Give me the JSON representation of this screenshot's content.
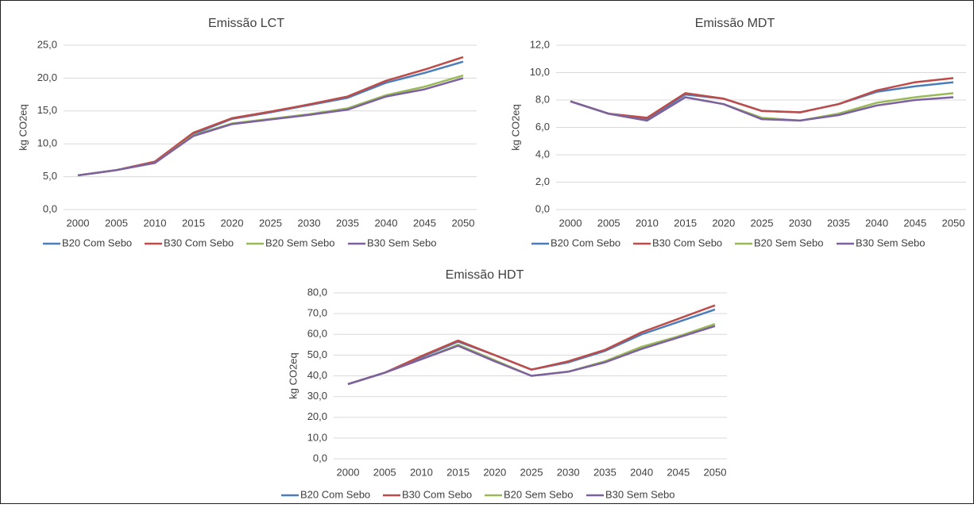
{
  "chart_data": [
    {
      "type": "line",
      "title": "Emissão LCT",
      "y_label": "kg CO2eq",
      "categories": [
        "2000",
        "2005",
        "2010",
        "2015",
        "2020",
        "2025",
        "2030",
        "2035",
        "2040",
        "2045",
        "2050"
      ],
      "ylim": [
        0,
        25
      ],
      "yticks": [
        {
          "value": 0,
          "label": "0,0"
        },
        {
          "value": 5,
          "label": "5,0"
        },
        {
          "value": 10,
          "label": "10,0"
        },
        {
          "value": 15,
          "label": "15,0"
        },
        {
          "value": 20,
          "label": "20,0"
        },
        {
          "value": 25,
          "label": "25,0"
        }
      ],
      "grid": true,
      "legend": "bottom",
      "series": [
        {
          "name": "B20 Com Sebo",
          "color": "#4a7ebb",
          "values": [
            5.2,
            6.0,
            7.2,
            11.5,
            13.8,
            14.8,
            15.9,
            17.0,
            19.3,
            20.8,
            22.5
          ]
        },
        {
          "name": "B30 Com Sebo",
          "color": "#be4b48",
          "values": [
            5.2,
            6.0,
            7.3,
            11.7,
            13.9,
            14.9,
            16.0,
            17.2,
            19.6,
            21.3,
            23.2
          ]
        },
        {
          "name": "B20 Sem Sebo",
          "color": "#98b954",
          "values": [
            5.2,
            6.0,
            7.1,
            11.3,
            13.1,
            13.8,
            14.5,
            15.4,
            17.4,
            18.7,
            20.4
          ]
        },
        {
          "name": "B30 Sem Sebo",
          "color": "#7d60a0",
          "values": [
            5.2,
            6.0,
            7.1,
            11.2,
            13.0,
            13.7,
            14.4,
            15.2,
            17.2,
            18.3,
            20.0
          ]
        }
      ]
    },
    {
      "type": "line",
      "title": "Emissão MDT",
      "y_label": "kg CO2eq",
      "categories": [
        "2000",
        "2005",
        "2010",
        "2015",
        "2020",
        "2025",
        "2030",
        "2035",
        "2040",
        "2045",
        "2050"
      ],
      "ylim": [
        0,
        12
      ],
      "yticks": [
        {
          "value": 0,
          "label": "0,0"
        },
        {
          "value": 2,
          "label": "2,0"
        },
        {
          "value": 4,
          "label": "4,0"
        },
        {
          "value": 6,
          "label": "6,0"
        },
        {
          "value": 8,
          "label": "8,0"
        },
        {
          "value": 10,
          "label": "10,0"
        },
        {
          "value": 12,
          "label": "12,0"
        }
      ],
      "grid": true,
      "legend": "bottom",
      "series": [
        {
          "name": "B20 Com Sebo",
          "color": "#4a7ebb",
          "values": [
            7.9,
            7.0,
            6.6,
            8.4,
            8.1,
            7.2,
            7.1,
            7.7,
            8.6,
            9.0,
            9.3
          ]
        },
        {
          "name": "B30 Com Sebo",
          "color": "#be4b48",
          "values": [
            7.9,
            7.0,
            6.7,
            8.5,
            8.1,
            7.2,
            7.1,
            7.7,
            8.7,
            9.3,
            9.6
          ]
        },
        {
          "name": "B20 Sem Sebo",
          "color": "#98b954",
          "values": [
            7.9,
            7.0,
            6.5,
            8.2,
            7.7,
            6.7,
            6.5,
            7.0,
            7.8,
            8.2,
            8.5
          ]
        },
        {
          "name": "B30 Sem Sebo",
          "color": "#7d60a0",
          "values": [
            7.9,
            7.0,
            6.5,
            8.2,
            7.7,
            6.6,
            6.5,
            6.9,
            7.6,
            8.0,
            8.2
          ]
        }
      ]
    },
    {
      "type": "line",
      "title": "Emissão HDT",
      "y_label": "kg CO2eq",
      "categories": [
        "2000",
        "2005",
        "2010",
        "2015",
        "2020",
        "2025",
        "2030",
        "2035",
        "2040",
        "2045",
        "2050"
      ],
      "ylim": [
        0,
        80
      ],
      "yticks": [
        {
          "value": 0,
          "label": "0,0"
        },
        {
          "value": 10,
          "label": "10,0"
        },
        {
          "value": 20,
          "label": "20,0"
        },
        {
          "value": 30,
          "label": "30,0"
        },
        {
          "value": 40,
          "label": "40,0"
        },
        {
          "value": 50,
          "label": "50,0"
        },
        {
          "value": 60,
          "label": "60,0"
        },
        {
          "value": 70,
          "label": "70,0"
        },
        {
          "value": 80,
          "label": "80,0"
        }
      ],
      "grid": true,
      "legend": "bottom",
      "series": [
        {
          "name": "B20 Com Sebo",
          "color": "#4a7ebb",
          "values": [
            36,
            41.5,
            49,
            56.5,
            50,
            43,
            46.5,
            52,
            60,
            66,
            72
          ]
        },
        {
          "name": "B30 Com Sebo",
          "color": "#be4b48",
          "values": [
            36,
            41.5,
            49.5,
            57,
            50,
            43,
            47,
            52.5,
            61,
            67.5,
            74
          ]
        },
        {
          "name": "B20 Sem Sebo",
          "color": "#98b954",
          "values": [
            36,
            41.5,
            48,
            55,
            47.5,
            40,
            42,
            47,
            54,
            59,
            65
          ]
        },
        {
          "name": "B30 Sem Sebo",
          "color": "#7d60a0",
          "values": [
            36,
            41.5,
            48,
            54.5,
            47,
            40,
            42,
            46.5,
            53,
            58.5,
            64
          ]
        }
      ]
    }
  ]
}
